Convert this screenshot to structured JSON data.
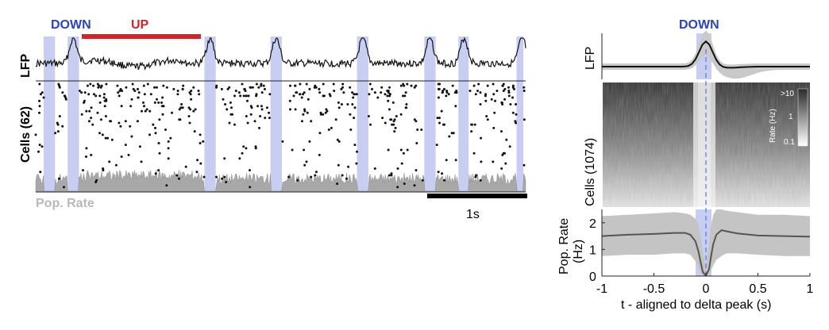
{
  "left_panel": {
    "down_label": "DOWN",
    "up_label": "UP",
    "lfp_label": "LFP",
    "cells_label": "Cells (62)",
    "pop_rate_label": "Pop. Rate",
    "scalebar_label": "1s"
  },
  "right_panel": {
    "down_label": "DOWN",
    "lfp_label": "LFP",
    "cells_label": "Cells (1074)",
    "colorbar": {
      "title": "Rate (Hz)",
      "ticks": [
        ">10",
        "1",
        "0.1"
      ]
    },
    "pop_rate_label_line1": "Pop. Rate",
    "pop_rate_label_line2": "(Hz)",
    "y_ticks": [
      "0",
      "1",
      "2"
    ],
    "x_ticks": [
      "-1",
      "-0.5",
      "0",
      "0.5",
      "1"
    ],
    "xlabel": "t - aligned to delta peak (s)"
  },
  "colors": {
    "down_shade": "#c8cef2",
    "down_text": "#2b44b8",
    "up_bar": "#d2232a",
    "pop_fill": "#a8a8a8",
    "band": "#bdbdbd",
    "dashed": "#5a78d6"
  },
  "chart_data": [
    {
      "type": "line",
      "panel": "left",
      "x_range_s": [
        0,
        4.3
      ],
      "down_states_s": [
        [
          0.07,
          0.17
        ],
        [
          0.28,
          0.38
        ],
        [
          1.48,
          1.58
        ],
        [
          2.06,
          2.16
        ],
        [
          2.82,
          2.92
        ],
        [
          3.41,
          3.51
        ],
        [
          3.71,
          3.8
        ],
        [
          4.22,
          4.28
        ]
      ],
      "up_state_s": [
        0.38,
        1.48
      ],
      "lfp_peak_times_s": [
        0.33,
        1.53,
        2.11,
        2.87,
        3.46,
        3.76,
        4.27
      ],
      "n_cells": 62,
      "scalebar_s": 1,
      "series": [
        {
          "name": "LFP"
        },
        {
          "name": "Cells (62)"
        },
        {
          "name": "Pop. Rate"
        }
      ]
    },
    {
      "type": "line",
      "panel": "right",
      "xlabel": "t - aligned to delta peak (s)",
      "ylabel": "Pop. Rate (Hz)",
      "xlim": [
        -1,
        1
      ],
      "ylim": [
        0,
        2.5
      ],
      "x": [
        -1,
        -0.75,
        -0.5,
        -0.3,
        -0.2,
        -0.15,
        -0.1,
        -0.07,
        -0.05,
        -0.03,
        0,
        0.03,
        0.05,
        0.07,
        0.1,
        0.15,
        0.2,
        0.3,
        0.5,
        0.75,
        1
      ],
      "y": [
        1.5,
        1.55,
        1.58,
        1.62,
        1.62,
        1.55,
        1.3,
        0.9,
        0.5,
        0.15,
        0.02,
        0.25,
        0.75,
        1.2,
        1.55,
        1.72,
        1.68,
        1.6,
        1.52,
        1.5,
        1.48
      ],
      "y_upper": [
        2.25,
        2.3,
        2.35,
        2.4,
        2.35,
        2.3,
        2.15,
        1.9,
        1.5,
        0.9,
        0.3,
        1.2,
        1.9,
        2.3,
        2.5,
        2.5,
        2.45,
        2.4,
        2.3,
        2.3,
        2.25
      ],
      "y_lower": [
        0.75,
        0.8,
        0.8,
        0.85,
        0.85,
        0.8,
        0.55,
        0.3,
        0.12,
        0.02,
        0,
        0.05,
        0.2,
        0.4,
        0.6,
        0.75,
        0.85,
        0.85,
        0.8,
        0.75,
        0.75
      ],
      "lfp_peak_s": 0,
      "n_cells": 1074
    }
  ]
}
